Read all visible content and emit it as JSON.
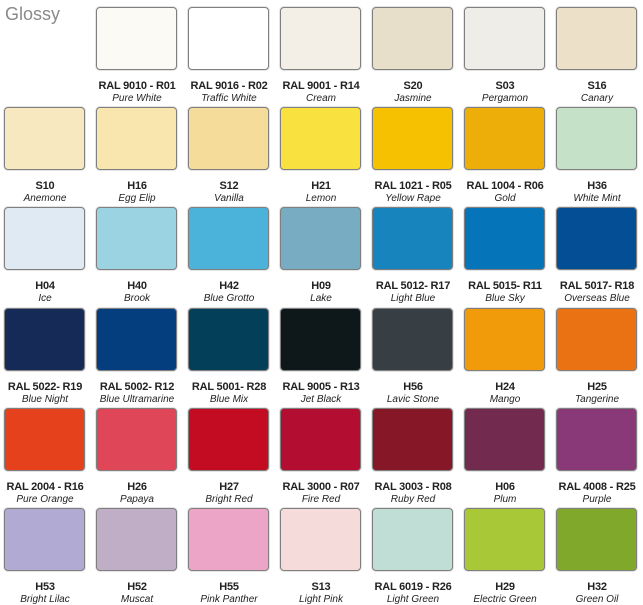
{
  "title": "Glossy",
  "rows": [
    [
      null,
      {
        "code": "RAL 9010 - R01",
        "name": "Pure White",
        "color": "#fbfaf5"
      },
      {
        "code": "RAL 9016 - R02",
        "name": "Traffic White",
        "color": "#ffffff"
      },
      {
        "code": "RAL 9001 - R14",
        "name": "Cream",
        "color": "#f4efe6"
      },
      {
        "code": "S20",
        "name": "Jasmine",
        "color": "#e8dfcb"
      },
      {
        "code": "S03",
        "name": "Pergamon",
        "color": "#eeede8"
      },
      {
        "code": "S16",
        "name": "Canary",
        "color": "#ede0c8"
      }
    ],
    [
      {
        "code": "S10",
        "name": "Anemone",
        "color": "#f8e8c0"
      },
      {
        "code": "H16",
        "name": "Egg Elip",
        "color": "#f9e5ae"
      },
      {
        "code": "S12",
        "name": "Vanilla",
        "color": "#f6dc9b"
      },
      {
        "code": "H21",
        "name": "Lemon",
        "color": "#f9e23f"
      },
      {
        "code": "RAL 1021 - R05",
        "name": "Yellow Rape",
        "color": "#f5c100"
      },
      {
        "code": "RAL 1004 - R06",
        "name": "Gold",
        "color": "#edae09"
      },
      {
        "code": "H36",
        "name": "White Mint",
        "color": "#c5e2c8"
      }
    ],
    [
      {
        "code": "H04",
        "name": "Ice",
        "color": "#dfeaf2"
      },
      {
        "code": "H40",
        "name": "Brook",
        "color": "#9bd3e3"
      },
      {
        "code": "H42",
        "name": "Blue Grotto",
        "color": "#4bb3d9"
      },
      {
        "code": "H09",
        "name": "Lake",
        "color": "#78acc3"
      },
      {
        "code": "RAL 5012- R17",
        "name": "Light Blue",
        "color": "#1784bd"
      },
      {
        "code": "RAL 5015- R11",
        "name": "Blue Sky",
        "color": "#0574b8"
      },
      {
        "code": "RAL 5017- R18",
        "name": "Overseas Blue",
        "color": "#034e94"
      }
    ],
    [
      {
        "code": "RAL 5022- R19",
        "name": "Blue Night",
        "color": "#152a57"
      },
      {
        "code": "RAL 5002- R12",
        "name": "Blue Ultramarine",
        "color": "#053e7e"
      },
      {
        "code": "RAL 5001- R28",
        "name": "Blue Mix",
        "color": "#043f59"
      },
      {
        "code": "RAL 9005 - R13",
        "name": "Jet Black",
        "color": "#0e1719"
      },
      {
        "code": "H56",
        "name": "Lavic Stone",
        "color": "#373f45"
      },
      {
        "code": "H24",
        "name": "Mango",
        "color": "#f19a0a"
      },
      {
        "code": "H25",
        "name": "Tangerine",
        "color": "#ea7212"
      }
    ],
    [
      {
        "code": "RAL 2004 - R16",
        "name": "Pure Orange",
        "color": "#e5411d"
      },
      {
        "code": "H26",
        "name": "Papaya",
        "color": "#df4657"
      },
      {
        "code": "H27",
        "name": "Bright Red",
        "color": "#c30c22"
      },
      {
        "code": "RAL 3000 - R07",
        "name": "Fire Red",
        "color": "#b30e31"
      },
      {
        "code": "RAL 3003 - R08",
        "name": "Ruby Red",
        "color": "#861726"
      },
      {
        "code": "H06",
        "name": "Plum",
        "color": "#722a4e"
      },
      {
        "code": "RAL 4008 - R25",
        "name": "Purple",
        "color": "#8a3978"
      }
    ],
    [
      {
        "code": "H53",
        "name": "Bright Lilac",
        "color": "#b1abd3"
      },
      {
        "code": "H52",
        "name": "Muscat",
        "color": "#bfaec6"
      },
      {
        "code": "H55",
        "name": "Pink Panther",
        "color": "#eca4c7"
      },
      {
        "code": "S13",
        "name": "Light Pink",
        "color": "#f5dcda"
      },
      {
        "code": "RAL 6019 - R26",
        "name": "Light Green",
        "color": "#c1ded6"
      },
      {
        "code": "H29",
        "name": "Electric Green",
        "color": "#a9c837"
      },
      {
        "code": "H32",
        "name": "Green Oil",
        "color": "#80a82b"
      }
    ]
  ]
}
